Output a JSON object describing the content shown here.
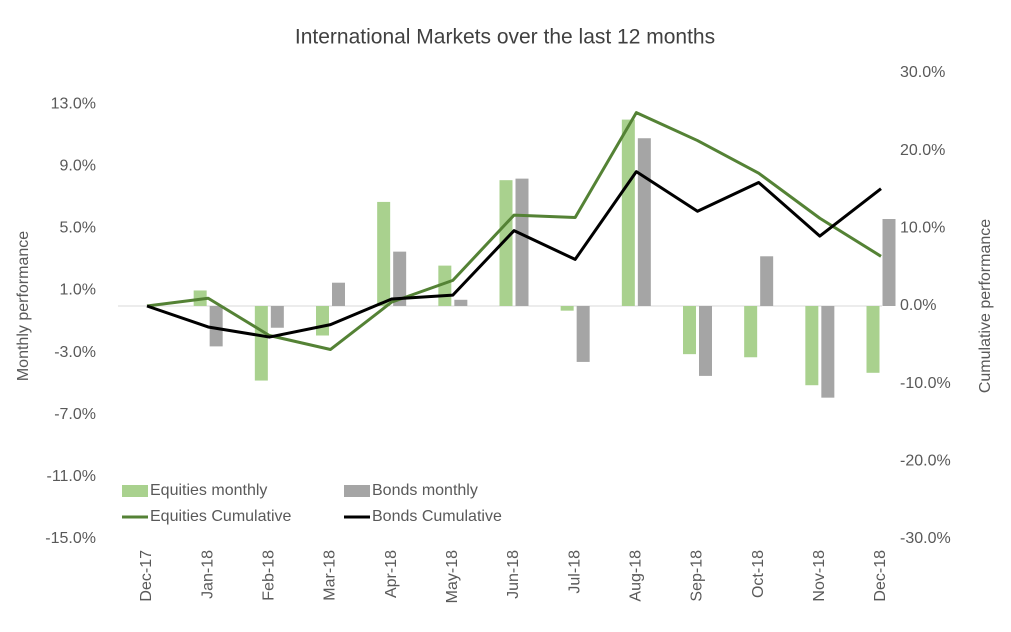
{
  "chart_data": {
    "type": "bar-line",
    "title": "International Markets over the last 12 months",
    "y_label": "Monthly performance",
    "y2_label": "Cumulative performance",
    "categories": [
      "Dec-17",
      "Jan-18",
      "Feb-18",
      "Mar-18",
      "Apr-18",
      "May-18",
      "Jun-18",
      "Jul-18",
      "Aug-18",
      "Sep-18",
      "Oct-18",
      "Nov-18",
      "Dec-18"
    ],
    "ylim": [
      -15,
      15
    ],
    "yticks": [
      {
        "value": 13,
        "label": "13.0%"
      },
      {
        "value": 9,
        "label": "9.0%"
      },
      {
        "value": 5,
        "label": "5.0%"
      },
      {
        "value": 1,
        "label": "1.0%"
      },
      {
        "value": -3,
        "label": "-3.0%"
      },
      {
        "value": -7,
        "label": "-7.0%"
      },
      {
        "value": -11,
        "label": "-11.0%"
      },
      {
        "value": -15,
        "label": "-15.0%"
      }
    ],
    "y2lim": [
      -30,
      30
    ],
    "y2ticks": [
      {
        "value": 30,
        "label": "30.0%"
      },
      {
        "value": 20,
        "label": "20.0%"
      },
      {
        "value": 10,
        "label": "10.0%"
      },
      {
        "value": 0,
        "label": "0.0%"
      },
      {
        "value": -10,
        "label": "-10.0%"
      },
      {
        "value": -20,
        "label": "-20.0%"
      },
      {
        "value": -30,
        "label": "-30.0%"
      }
    ],
    "legend": "lower left",
    "series": [
      {
        "name": "Equities monthly",
        "type": "bar",
        "color": "#a9d18e",
        "values": [
          null,
          1.0,
          -4.8,
          -1.9,
          6.7,
          2.6,
          8.1,
          -0.3,
          12.0,
          -3.1,
          -3.3,
          -5.1,
          -4.3
        ]
      },
      {
        "name": "Bonds monthly",
        "type": "bar",
        "color": "#a5a5a5",
        "values": [
          null,
          -2.6,
          -1.4,
          1.5,
          3.5,
          0.4,
          8.2,
          -3.6,
          10.8,
          -4.5,
          3.2,
          -5.9,
          5.6
        ]
      },
      {
        "name": "Equities Cumulative",
        "type": "line",
        "axis": "y2",
        "color": "#548235",
        "values": [
          0,
          1.0,
          -3.8,
          -5.6,
          0.5,
          3.3,
          11.7,
          11.4,
          24.9,
          21.3,
          17.1,
          11.3,
          6.4
        ]
      },
      {
        "name": "Bonds Cumulative",
        "type": "line",
        "axis": "y2",
        "color": "#000000",
        "values": [
          0,
          -2.7,
          -4.0,
          -2.4,
          0.9,
          1.4,
          9.7,
          6.0,
          17.3,
          12.2,
          15.9,
          9.0,
          15.1
        ]
      }
    ]
  }
}
